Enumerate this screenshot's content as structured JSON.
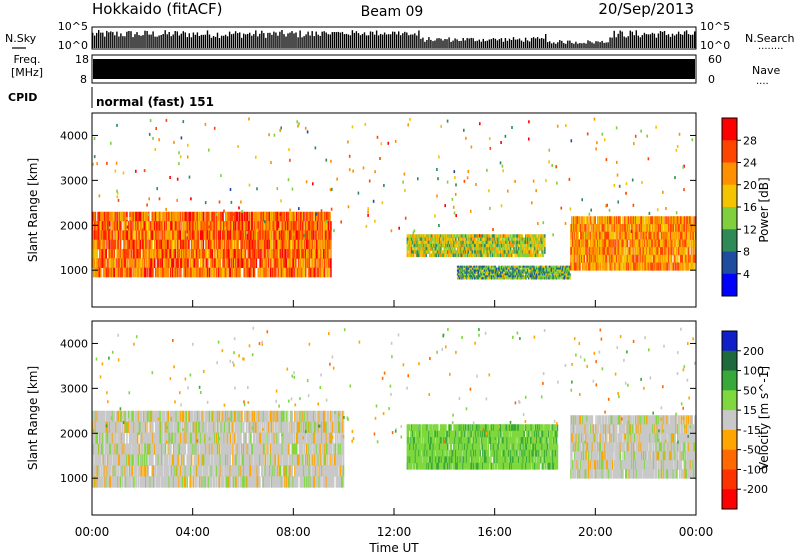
{
  "header": {
    "station": "Hokkaido (fitACF)",
    "beam": "Beam 09",
    "date": "20/Sep/2013"
  },
  "top_panels": {
    "nsky": {
      "label": "N.Sky",
      "ticks_left": [
        "10^5",
        "10^0"
      ],
      "ticks_right": [
        "10^5",
        "10^0"
      ],
      "right_label": "N.Search",
      "right_dots": "........"
    },
    "freq": {
      "label_line1": "Freq.",
      "label_line2": "[MHz]",
      "ticks_left": [
        "18",
        "8"
      ],
      "ticks_right": [
        "60",
        "0"
      ],
      "right_label": "Nave",
      "right_dots": "...."
    },
    "cpid": {
      "label": "CPID",
      "value": "normal (fast) 151"
    }
  },
  "colors": {
    "power_scale": [
      "#0000ff",
      "#1e4da0",
      "#2e8b57",
      "#7fcf3f",
      "#f5c400",
      "#ff9000",
      "#ff4500",
      "#ff0000"
    ],
    "velocity_scale": [
      "#1020c8",
      "#1e6a3c",
      "#38a838",
      "#7ed83e",
      "#c8c8c8",
      "#ffa500",
      "#ff6a00",
      "#ff3300",
      "#ff0000"
    ]
  },
  "chart_data": [
    {
      "type": "heatmap",
      "quantity": "Power",
      "ylabel": "Slant Range [km]",
      "xlabel": "",
      "colorbar_label": "Power [dB]",
      "colorbar_ticks": [
        "28",
        "24",
        "20",
        "16",
        "12",
        "8",
        "4"
      ],
      "colorbar_range": [
        0,
        32
      ],
      "yticks": [
        "4000",
        "3000",
        "2000",
        "1000"
      ],
      "ylim": [
        180,
        4500
      ],
      "xlim_hours": [
        0,
        24
      ],
      "regions": [
        {
          "t": [
            0,
            9.5
          ],
          "range_km": [
            850,
            2300
          ],
          "power_db": 24
        },
        {
          "t": [
            12.5,
            18
          ],
          "range_km": [
            1300,
            1800
          ],
          "power_db": 16
        },
        {
          "t": [
            14.5,
            19
          ],
          "range_km": [
            800,
            1100
          ],
          "power_db": 12
        },
        {
          "t": [
            19,
            24
          ],
          "range_km": [
            1000,
            2200
          ],
          "power_db": 22
        }
      ]
    },
    {
      "type": "heatmap",
      "quantity": "Velocity",
      "ylabel": "Slant Range [km]",
      "xlabel": "Time UT",
      "colorbar_label": "Velocity [m s^-1]",
      "colorbar_ticks": [
        "200",
        "100",
        "50",
        "15",
        "-15",
        "-50",
        "-100",
        "-200"
      ],
      "colorbar_range": [
        -250,
        250
      ],
      "yticks": [
        "4000",
        "3000",
        "2000",
        "1000"
      ],
      "ylim": [
        180,
        4500
      ],
      "xlim_hours": [
        0,
        24
      ],
      "xticks": [
        "00:00",
        "04:00",
        "08:00",
        "12:00",
        "16:00",
        "20:00",
        "00:00"
      ],
      "regions": [
        {
          "t": [
            0,
            10
          ],
          "range_km": [
            800,
            2500
          ],
          "velocity": 0
        },
        {
          "t": [
            12.5,
            18.5
          ],
          "range_km": [
            1200,
            2200
          ],
          "velocity": 40
        },
        {
          "t": [
            19,
            24
          ],
          "range_km": [
            1000,
            2400
          ],
          "velocity": 0
        }
      ]
    }
  ]
}
